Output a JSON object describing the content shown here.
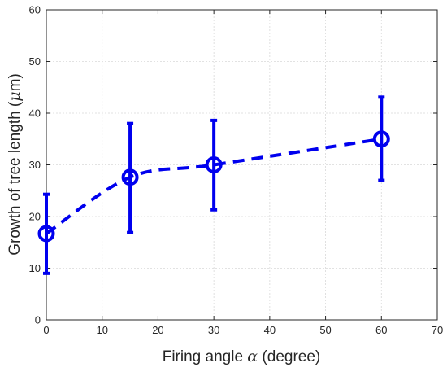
{
  "chart_data": {
    "type": "line",
    "xlabel_parts": [
      "Firing angle ",
      "α",
      " (degree)"
    ],
    "ylabel_parts": [
      "Growth of tree length (",
      "μ",
      "m)"
    ],
    "xlim": [
      0,
      70
    ],
    "ylim": [
      0,
      60
    ],
    "x_ticks": [
      0,
      10,
      20,
      30,
      40,
      50,
      60,
      70
    ],
    "y_ticks": [
      0,
      10,
      20,
      30,
      40,
      50,
      60
    ],
    "grid": true,
    "line_style": "dashed",
    "marker": "circle",
    "error_bars": true,
    "series": [
      {
        "x": [
          0,
          15,
          30,
          60
        ],
        "y": [
          16.7,
          27.6,
          30.0,
          35.0
        ],
        "err_low": [
          9.0,
          16.9,
          21.3,
          27.0
        ],
        "err_high": [
          24.3,
          38.0,
          38.6,
          43.1
        ],
        "color": "#0000ee"
      }
    ]
  }
}
